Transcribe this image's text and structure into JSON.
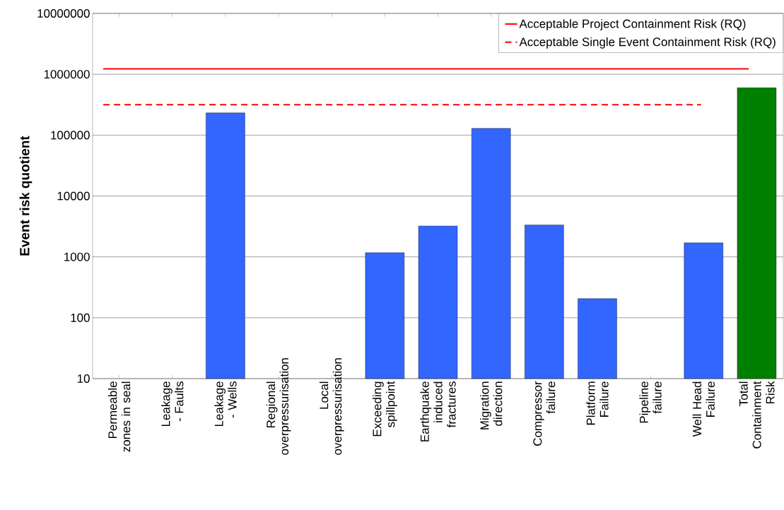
{
  "chart_data": {
    "type": "bar",
    "ylabel": "Event risk quotient",
    "categories": [
      "Permeable zones in seal",
      "Leakage - Faults",
      "Leakage - Wells",
      "Regional overpressurisation",
      "Local overpressurisation",
      "Exceeding spillpoint",
      "Earthquake induced fractures",
      "Migration direction",
      "Compressor failure",
      "Platform Failure",
      "Pipeline failure",
      "Well Head Failure",
      "Total Containment Risk"
    ],
    "values": [
      null,
      null,
      232000,
      null,
      null,
      1170,
      3220,
      129000,
      3350,
      206,
      null,
      1700,
      600000
    ],
    "colors": [
      "#3366ff",
      "#3366ff",
      "#3366ff",
      "#3366ff",
      "#3366ff",
      "#3366ff",
      "#3366ff",
      "#3366ff",
      "#3366ff",
      "#3366ff",
      "#3366ff",
      "#3366ff",
      "#008000"
    ],
    "log": "y",
    "ylim": [
      10,
      10000000
    ],
    "yticks": [
      10,
      100,
      1000,
      10000,
      100000,
      1000000,
      10000000
    ],
    "grid": "y",
    "legend": "top right",
    "ref_lines": [
      {
        "axis": "y",
        "value": 1230000,
        "label": "Acceptable Project Containment Risk (RQ)",
        "color": "#ff0000",
        "line_style": "solid"
      },
      {
        "axis": "y",
        "value": 316000,
        "label": "Acceptable Single Event Containment Risk (RQ)",
        "color": "#ff0000",
        "line_style": "dashed"
      }
    ]
  }
}
